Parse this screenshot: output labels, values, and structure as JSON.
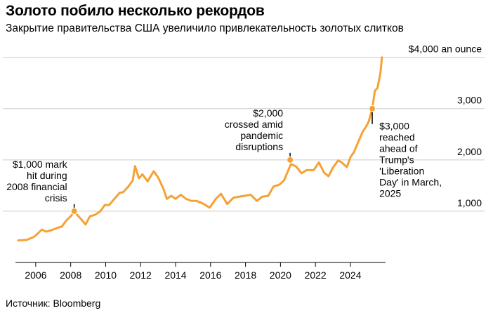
{
  "header": {
    "title": "Золото побило несколько рекордов",
    "subtitle": "Закрытие правительства США увеличило привлекательность золотых слитков"
  },
  "footer": {
    "source": "Источник: Bloomberg"
  },
  "colors": {
    "line": "#f5a235",
    "gridline": "#cccccc",
    "axis": "#000000",
    "text": "#000000"
  },
  "chart_data": {
    "type": "line",
    "title": "",
    "xlabel": "",
    "ylabel": "",
    "xlim": [
      2005.0,
      2025.85
    ],
    "ylim": [
      0,
      4050
    ],
    "y_ticks": [
      {
        "value": 1000,
        "label": "1,000"
      },
      {
        "value": 2000,
        "label": "2,000"
      },
      {
        "value": 3000,
        "label": "3,000"
      },
      {
        "value": 4000,
        "label": "$4,000 an ounce"
      }
    ],
    "x_ticks": [
      {
        "value": 2006,
        "label": "2006"
      },
      {
        "value": 2008,
        "label": "2008"
      },
      {
        "value": 2010,
        "label": "2010"
      },
      {
        "value": 2012,
        "label": "2012"
      },
      {
        "value": 2014,
        "label": "2014"
      },
      {
        "value": 2016,
        "label": "2016"
      },
      {
        "value": 2018,
        "label": "2018"
      },
      {
        "value": 2020,
        "label": "2020"
      },
      {
        "value": 2022,
        "label": "2022"
      },
      {
        "value": 2024,
        "label": "2024"
      }
    ],
    "grid": "horizontal",
    "series": [
      {
        "name": "",
        "x": [
          2005.0,
          2005.5,
          2005.9,
          2006.1,
          2006.35,
          2006.6,
          2006.9,
          2007.2,
          2007.5,
          2007.75,
          2008.0,
          2008.2,
          2008.45,
          2008.7,
          2008.85,
          2009.1,
          2009.4,
          2009.7,
          2009.95,
          2010.2,
          2010.5,
          2010.8,
          2011.0,
          2011.3,
          2011.55,
          2011.68,
          2011.9,
          2012.1,
          2012.4,
          2012.75,
          2013.0,
          2013.3,
          2013.5,
          2013.75,
          2014.0,
          2014.3,
          2014.6,
          2014.9,
          2015.2,
          2015.5,
          2015.95,
          2016.3,
          2016.6,
          2016.95,
          2017.3,
          2017.6,
          2017.95,
          2018.3,
          2018.65,
          2018.95,
          2019.3,
          2019.6,
          2019.95,
          2020.2,
          2020.6,
          2020.9,
          2021.2,
          2021.5,
          2021.9,
          2022.2,
          2022.5,
          2022.75,
          2023.0,
          2023.3,
          2023.5,
          2023.8,
          2024.0,
          2024.2,
          2024.45,
          2024.7,
          2024.9,
          2025.05,
          2025.25,
          2025.4,
          2025.55,
          2025.72,
          2025.8
        ],
        "values": [
          430,
          440,
          500,
          560,
          640,
          600,
          630,
          670,
          700,
          820,
          900,
          990,
          900,
          800,
          740,
          900,
          930,
          1000,
          1120,
          1120,
          1240,
          1360,
          1370,
          1480,
          1600,
          1880,
          1640,
          1720,
          1580,
          1780,
          1660,
          1440,
          1240,
          1300,
          1240,
          1320,
          1240,
          1200,
          1200,
          1160,
          1070,
          1240,
          1340,
          1140,
          1260,
          1280,
          1300,
          1320,
          1200,
          1280,
          1300,
          1480,
          1520,
          1600,
          1920,
          1870,
          1740,
          1800,
          1800,
          1950,
          1750,
          1680,
          1850,
          1990,
          1950,
          1860,
          2050,
          2150,
          2350,
          2550,
          2650,
          2750,
          3000,
          3350,
          3400,
          3700,
          4000
        ]
      }
    ],
    "annotations": [
      {
        "x": 2008.2,
        "y": 1000,
        "lines": [
          "$1,000 mark",
          "hit during",
          "2008 financial",
          "crisis"
        ]
      },
      {
        "x": 2020.55,
        "y": 2000,
        "lines": [
          "$2,000",
          "crossed amid",
          "pandemic",
          "disruptions"
        ]
      },
      {
        "x": 2025.25,
        "y": 3000,
        "lines": [
          "$3,000",
          "reached",
          "ahead of",
          "Trump's",
          "'Liberation",
          "Day' in March,",
          "2025"
        ]
      }
    ]
  }
}
